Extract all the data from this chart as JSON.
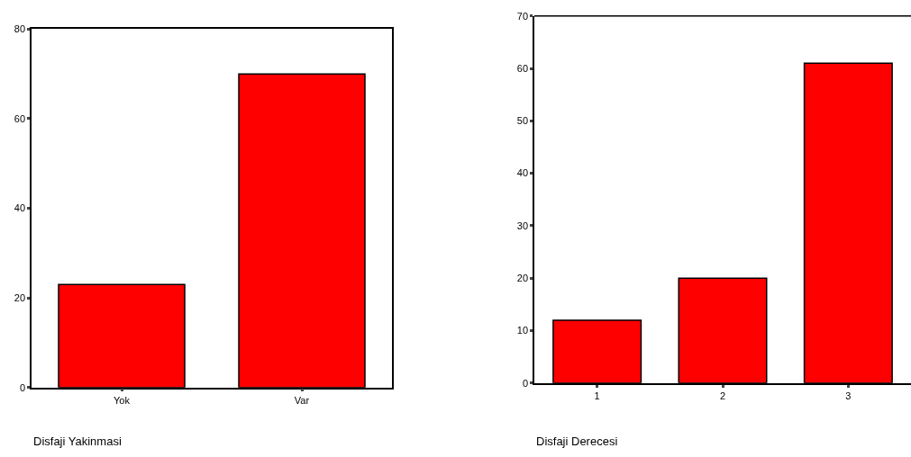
{
  "chart_data": [
    {
      "type": "bar",
      "xlabel": "Disfaji Yakinmasi",
      "categories": [
        "Yok",
        "Var"
      ],
      "values": [
        23,
        70
      ],
      "color": "#ff0000",
      "ylim": [
        0,
        80
      ],
      "yticks": [
        0,
        20,
        40,
        60,
        80
      ]
    },
    {
      "type": "bar",
      "xlabel": "Disfaji Derecesi",
      "categories": [
        "1",
        "2",
        "3"
      ],
      "values": [
        12,
        20,
        61
      ],
      "color": "#ff0000",
      "ylim": [
        0,
        70
      ],
      "yticks": [
        0,
        10,
        20,
        30,
        40,
        50,
        60,
        70
      ]
    }
  ]
}
